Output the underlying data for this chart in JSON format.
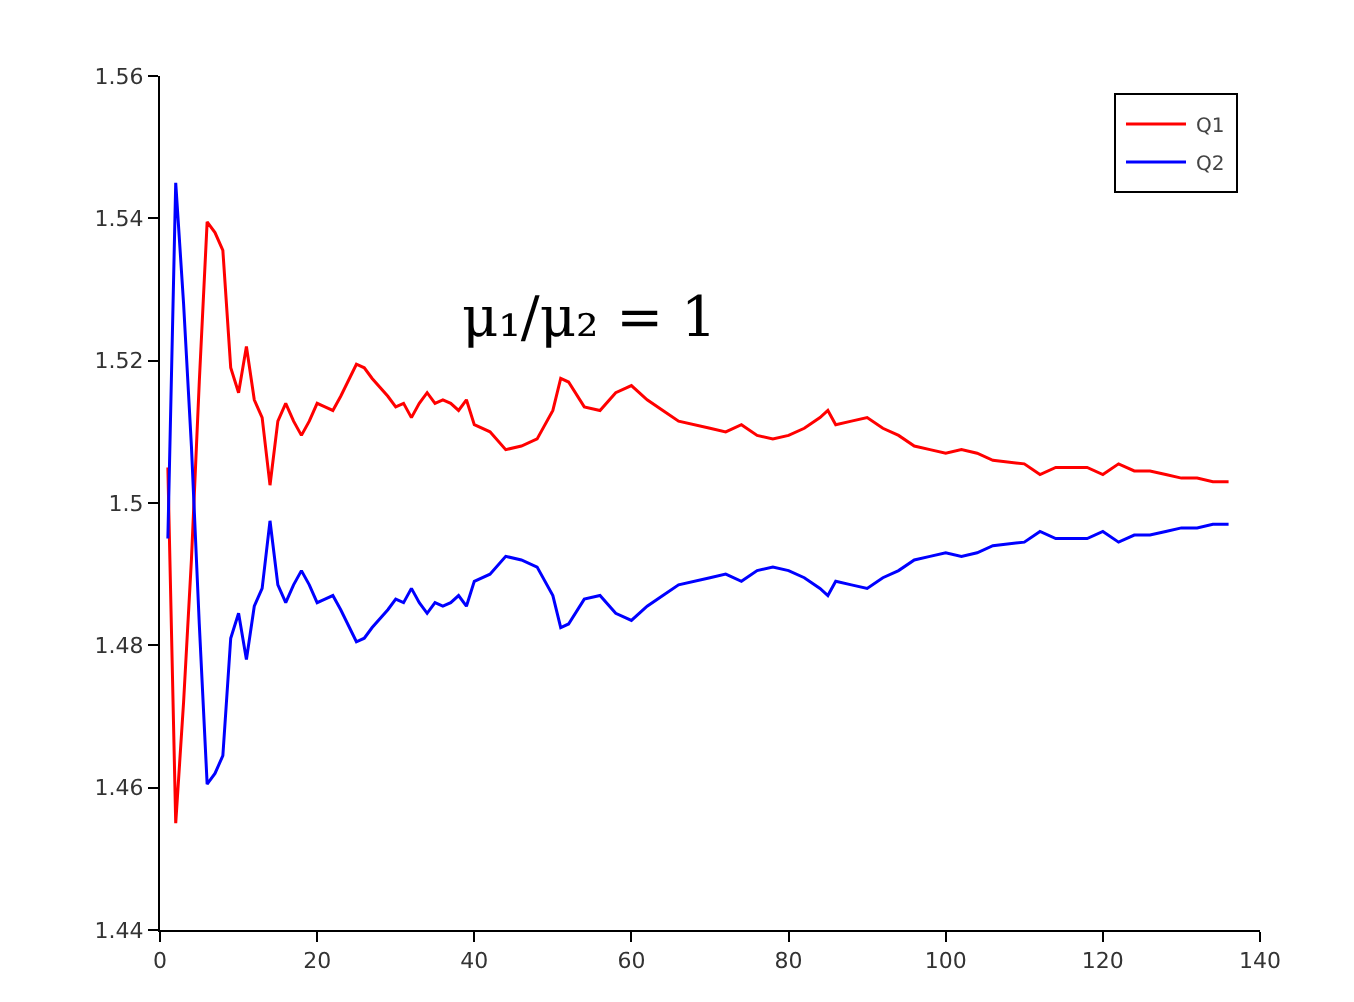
{
  "chart_data": {
    "type": "line",
    "annotations": [
      "μ₁/μ₂ = 1"
    ],
    "x": [
      1,
      2,
      3,
      4,
      5,
      6,
      7,
      8,
      9,
      10,
      11,
      12,
      13,
      14,
      15,
      16,
      17,
      18,
      19,
      20,
      21,
      22,
      23,
      25,
      26,
      27,
      29,
      30,
      31,
      32,
      33,
      34,
      35,
      36,
      37,
      38,
      39,
      40,
      42,
      44,
      46,
      48,
      50,
      51,
      52,
      54,
      56,
      58,
      60,
      62,
      64,
      66,
      70,
      72,
      74,
      76,
      78,
      80,
      82,
      84,
      85,
      86,
      88,
      90,
      92,
      94,
      96,
      98,
      100,
      102,
      104,
      106,
      110,
      112,
      114,
      118,
      120,
      122,
      124,
      126,
      128,
      130,
      132,
      134,
      136
    ],
    "series": [
      {
        "name": "Q1",
        "color": "#ff0000",
        "values": [
          1.505,
          1.455,
          1.472,
          1.492,
          1.517,
          1.5395,
          1.538,
          1.5355,
          1.519,
          1.5155,
          1.522,
          1.5145,
          1.512,
          1.5025,
          1.5115,
          1.514,
          1.5115,
          1.5095,
          1.5115,
          1.514,
          1.5135,
          1.513,
          1.515,
          1.5195,
          1.519,
          1.5175,
          1.515,
          1.5135,
          1.514,
          1.512,
          1.514,
          1.5155,
          1.514,
          1.5145,
          1.514,
          1.513,
          1.5145,
          1.511,
          1.51,
          1.5075,
          1.508,
          1.509,
          1.513,
          1.5175,
          1.517,
          1.5135,
          1.513,
          1.5155,
          1.5165,
          1.5145,
          1.513,
          1.5115,
          1.5105,
          1.51,
          1.511,
          1.5095,
          1.509,
          1.5095,
          1.5105,
          1.512,
          1.513,
          1.511,
          1.5115,
          1.512,
          1.5105,
          1.5095,
          1.508,
          1.5075,
          1.507,
          1.5075,
          1.507,
          1.506,
          1.5055,
          1.504,
          1.505,
          1.505,
          1.504,
          1.5055,
          1.5045,
          1.5045,
          1.504,
          1.5035,
          1.5035,
          1.503,
          1.503
        ]
      },
      {
        "name": "Q2",
        "color": "#0000ff",
        "values": [
          1.495,
          1.545,
          1.528,
          1.508,
          1.483,
          1.4605,
          1.462,
          1.4645,
          1.481,
          1.4845,
          1.478,
          1.4855,
          1.488,
          1.4975,
          1.4885,
          1.486,
          1.4885,
          1.4905,
          1.4885,
          1.486,
          1.4865,
          1.487,
          1.485,
          1.4805,
          1.481,
          1.4825,
          1.485,
          1.4865,
          1.486,
          1.488,
          1.486,
          1.4845,
          1.486,
          1.4855,
          1.486,
          1.487,
          1.4855,
          1.489,
          1.49,
          1.4925,
          1.492,
          1.491,
          1.487,
          1.4825,
          1.483,
          1.4865,
          1.487,
          1.4845,
          1.4835,
          1.4855,
          1.487,
          1.4885,
          1.4895,
          1.49,
          1.489,
          1.4905,
          1.491,
          1.4905,
          1.4895,
          1.488,
          1.487,
          1.489,
          1.4885,
          1.488,
          1.4895,
          1.4905,
          1.492,
          1.4925,
          1.493,
          1.4925,
          1.493,
          1.494,
          1.4945,
          1.496,
          1.495,
          1.495,
          1.496,
          1.4945,
          1.4955,
          1.4955,
          1.496,
          1.4965,
          1.4965,
          1.497,
          1.497
        ]
      }
    ],
    "xlim": [
      0,
      140
    ],
    "xticks": [
      0,
      20,
      40,
      60,
      80,
      100,
      120,
      140
    ],
    "ylim": [
      1.44,
      1.56
    ],
    "yticks": [
      1.44,
      1.46,
      1.48,
      1.5,
      1.52,
      1.54,
      1.56
    ],
    "grid": false,
    "legend": "top right",
    "marker": "none",
    "line_style": "solid"
  }
}
